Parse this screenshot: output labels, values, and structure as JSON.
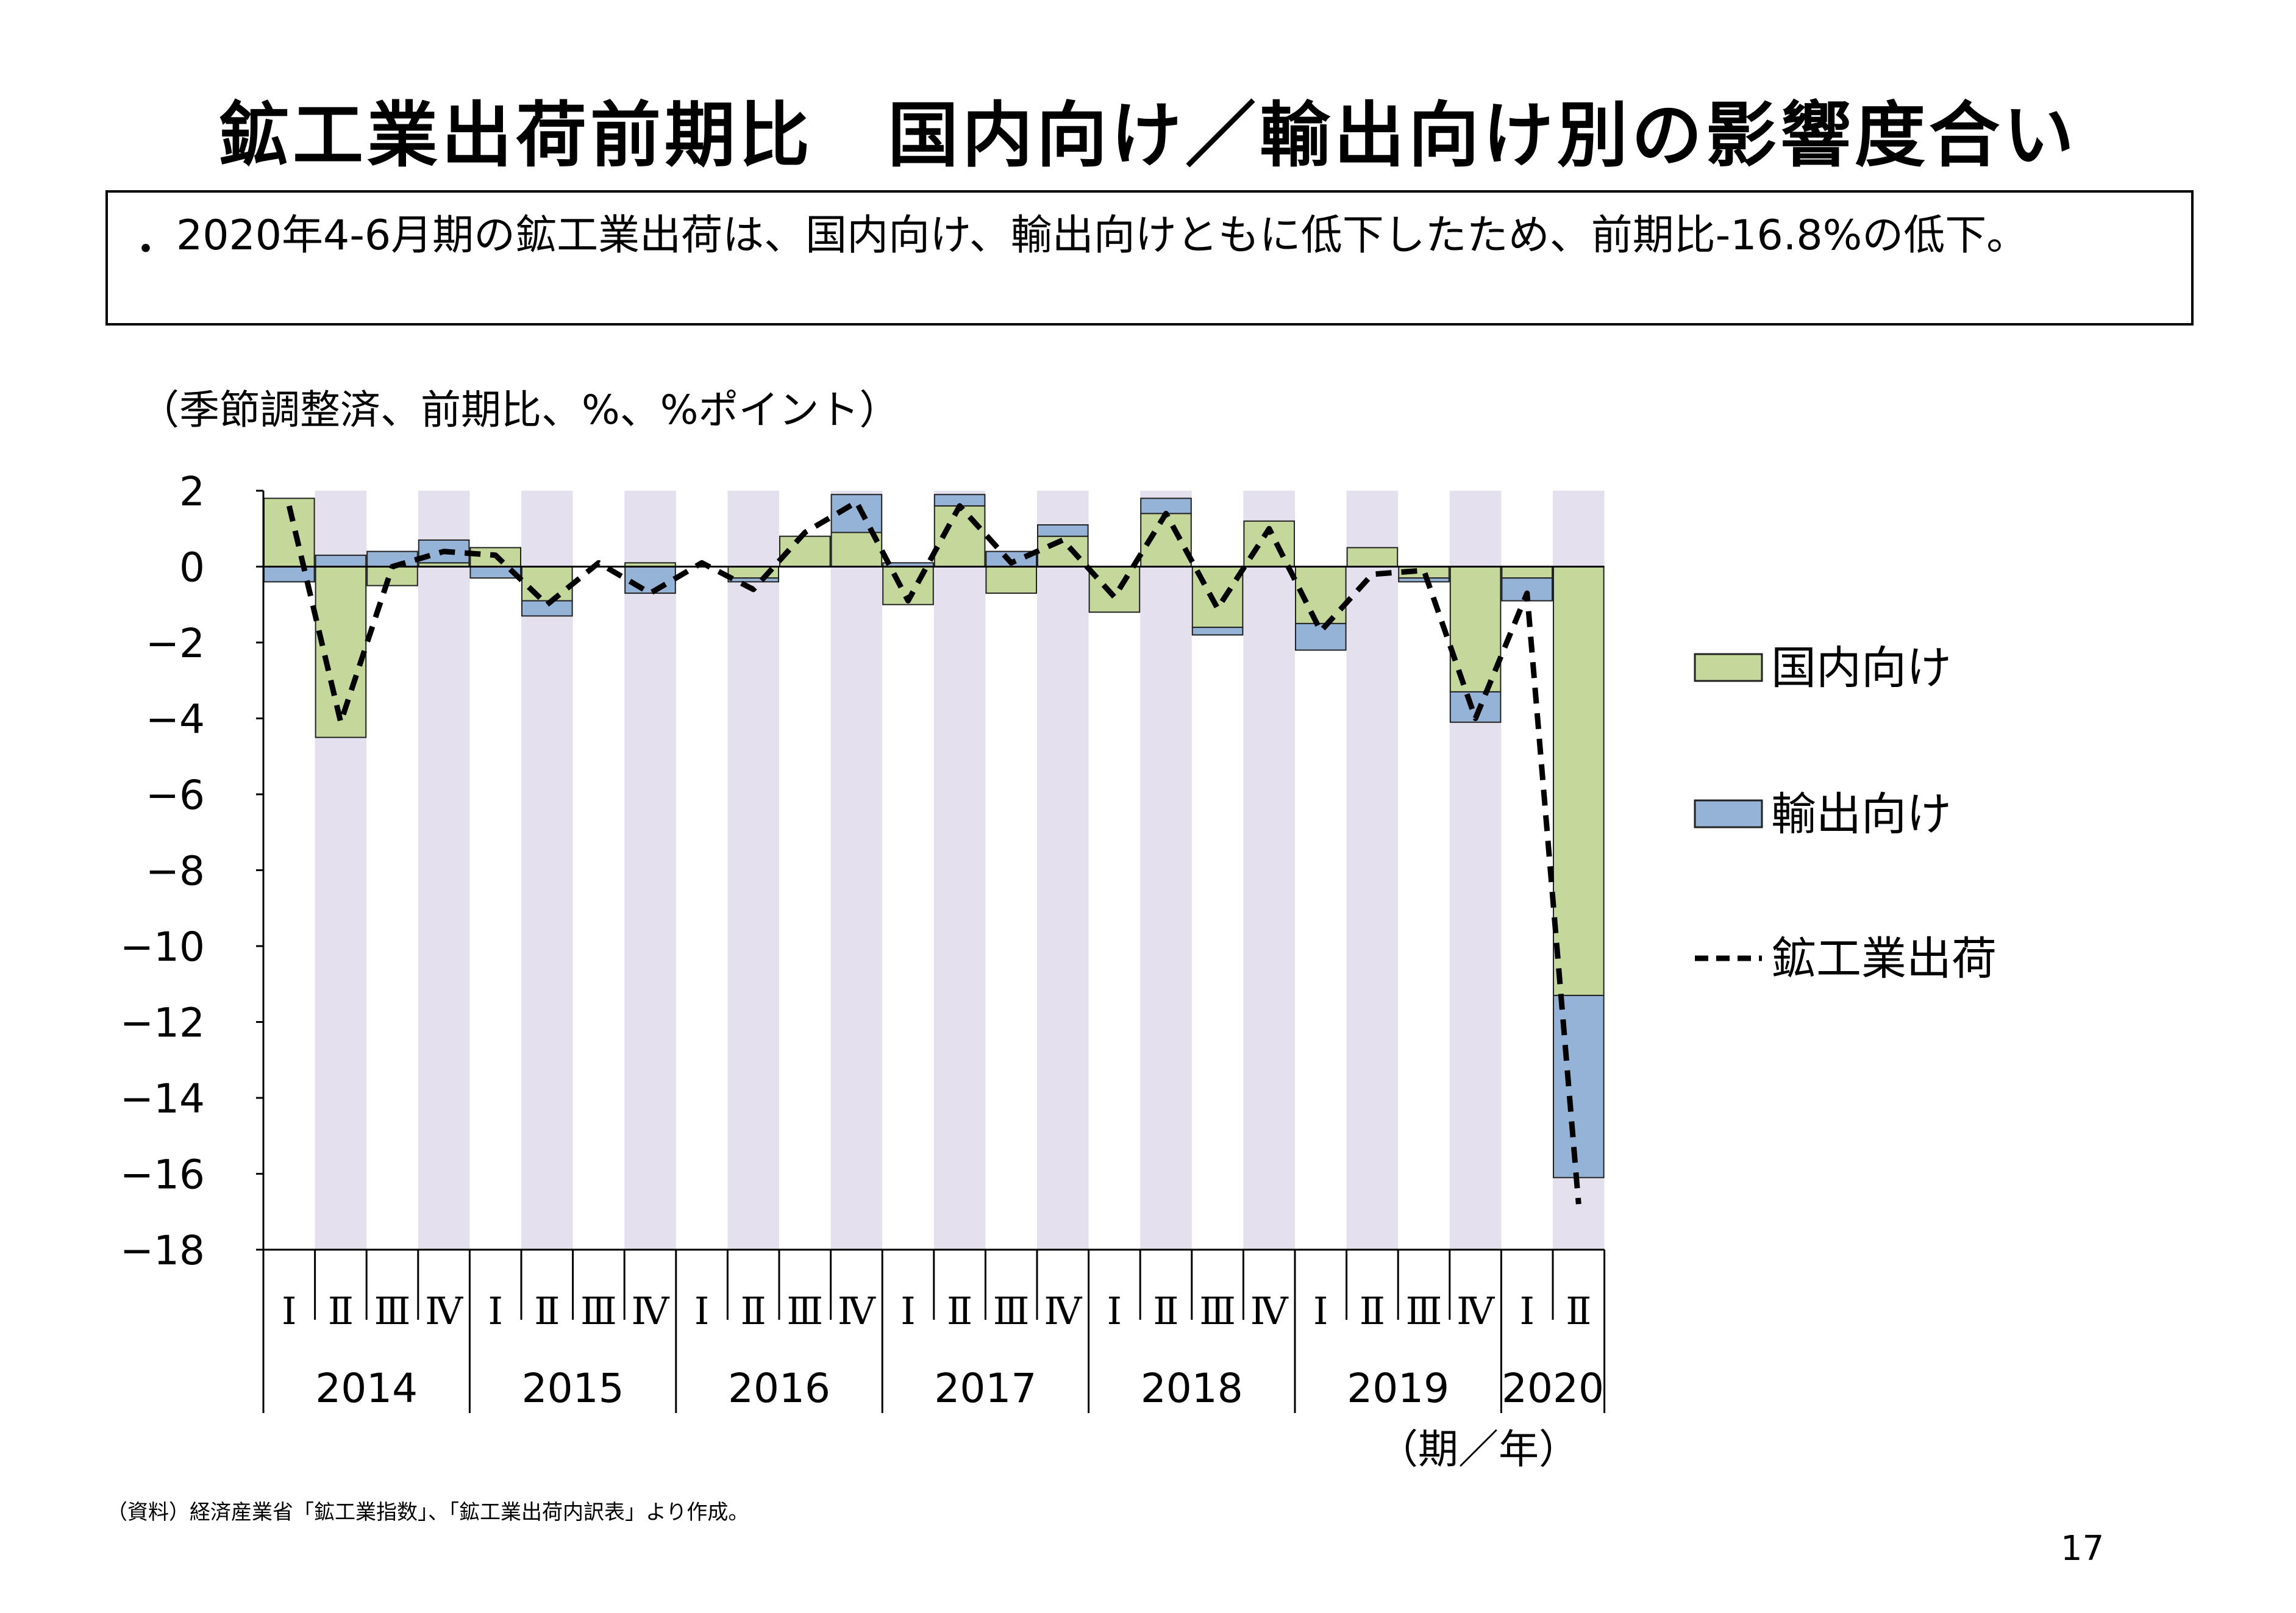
{
  "title": "鉱工業出荷前期比　国内向け／輸出向け別の影響度合い",
  "summary": {
    "bullet": "・",
    "text": "2020年4-6月期の鉱工業出荷は、国内向け、輸出向けともに低下したため、前期比-16.8%の低下。"
  },
  "chart_data": {
    "type": "bar",
    "ylabel": "（季節調整済、前期比、%、%ポイント）",
    "xlabel": "（期／年）",
    "ylim": [
      -18,
      2
    ],
    "yticks": [
      2,
      0,
      -2,
      -4,
      -6,
      -8,
      -10,
      -12,
      -14,
      -16,
      -18
    ],
    "categories": [
      "I",
      "II",
      "III",
      "IV",
      "I",
      "II",
      "III",
      "IV",
      "I",
      "II",
      "III",
      "IV",
      "I",
      "II",
      "III",
      "IV",
      "I",
      "II",
      "III",
      "IV",
      "I",
      "II",
      "III",
      "IV",
      "I",
      "II"
    ],
    "quarter_labels": [
      "Ⅰ",
      "Ⅱ",
      "Ⅲ",
      "Ⅳ",
      "Ⅰ",
      "Ⅱ",
      "Ⅲ",
      "Ⅳ",
      "Ⅰ",
      "Ⅱ",
      "Ⅲ",
      "Ⅳ",
      "Ⅰ",
      "Ⅱ",
      "Ⅲ",
      "Ⅳ",
      "Ⅰ",
      "Ⅱ",
      "Ⅲ",
      "Ⅳ",
      "Ⅰ",
      "Ⅱ",
      "Ⅲ",
      "Ⅳ",
      "Ⅰ",
      "Ⅱ"
    ],
    "years": [
      "2014",
      "2015",
      "2016",
      "2017",
      "2018",
      "2019",
      "2020"
    ],
    "year_quarter_counts": [
      4,
      4,
      4,
      4,
      4,
      4,
      2
    ],
    "stacked": true,
    "series": [
      {
        "name": "国内向け",
        "color": "#c4d89b",
        "values": [
          1.8,
          -4.5,
          -0.5,
          0.1,
          0.5,
          -0.9,
          0.0,
          0.1,
          0.0,
          -0.3,
          0.8,
          0.9,
          -1.0,
          1.6,
          -0.7,
          0.8,
          -1.2,
          1.4,
          -1.6,
          1.2,
          -1.5,
          0.5,
          -0.3,
          -3.3,
          -0.3,
          -11.3
        ]
      },
      {
        "name": "輸出向け",
        "color": "#95b3d7",
        "values": [
          -0.4,
          0.3,
          0.4,
          0.6,
          -0.3,
          -0.4,
          0.0,
          -0.7,
          0.0,
          -0.1,
          0.0,
          1.0,
          0.1,
          0.3,
          0.4,
          0.3,
          0.0,
          0.4,
          -0.2,
          0.0,
          -0.7,
          0.0,
          -0.1,
          -0.8,
          -0.6,
          -4.8
        ]
      },
      {
        "name": "鉱工業出荷",
        "type": "line",
        "style": "dashed",
        "color": "#000000",
        "values": [
          1.6,
          -4.1,
          0.0,
          0.4,
          0.3,
          -1.0,
          0.1,
          -0.7,
          0.1,
          -0.6,
          0.9,
          1.7,
          -0.9,
          1.6,
          0.1,
          0.7,
          -0.8,
          1.4,
          -1.1,
          1.0,
          -1.7,
          -0.2,
          -0.1,
          -4.0,
          -0.7,
          -16.8
        ]
      }
    ],
    "shaded_bands": "even quarters (Ⅱ, Ⅳ)",
    "band_color": "#e4e0ee",
    "legend_position": "right",
    "grid": false
  },
  "footnote": "（資料）経済産業省「鉱工業指数」、「鉱工業出荷内訳表」より作成。",
  "page_number": "17"
}
